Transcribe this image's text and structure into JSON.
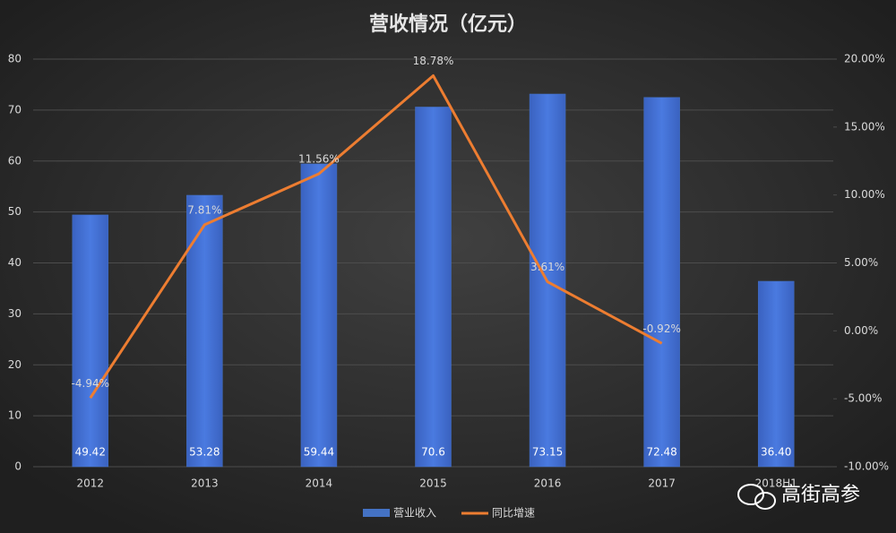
{
  "chart_data": {
    "type": "bar",
    "title": "营收情况（亿元）",
    "categories": [
      "2012",
      "2013",
      "2014",
      "2015",
      "2016",
      "2017",
      "2018H1"
    ],
    "series": [
      {
        "name": "营业收入",
        "type": "bar",
        "color": "#4472c4",
        "values": [
          49.42,
          53.28,
          59.44,
          70.6,
          73.15,
          72.48,
          36.4
        ],
        "value_labels": [
          "49.42",
          "53.28",
          "59.44",
          "70.6",
          "73.15",
          "72.48",
          "36.40"
        ]
      },
      {
        "name": "同比增速",
        "type": "line",
        "axis": "y2",
        "color": "#ed7d31",
        "values": [
          -4.94,
          7.81,
          11.56,
          18.78,
          3.61,
          -0.92,
          null
        ],
        "value_labels": [
          "-4.94%",
          "7.81%",
          "11.56%",
          "18.78%",
          "3.61%",
          "-0.92%",
          null
        ]
      }
    ],
    "ylim": [
      0,
      80
    ],
    "yticks": [
      0,
      10,
      20,
      30,
      40,
      50,
      60,
      70,
      80
    ],
    "y2lim": [
      -10,
      20
    ],
    "y2ticks": [
      {
        "value": -10,
        "label": "-10.00%"
      },
      {
        "value": -5,
        "label": "-5.00%"
      },
      {
        "value": 0,
        "label": "0.00%"
      },
      {
        "value": 5,
        "label": "5.00%"
      },
      {
        "value": 10,
        "label": "10.00%"
      },
      {
        "value": 15,
        "label": "15.00%"
      },
      {
        "value": 20,
        "label": "20.00%"
      }
    ],
    "grid": true,
    "legend": "bottom",
    "watermark": "高街高参"
  }
}
